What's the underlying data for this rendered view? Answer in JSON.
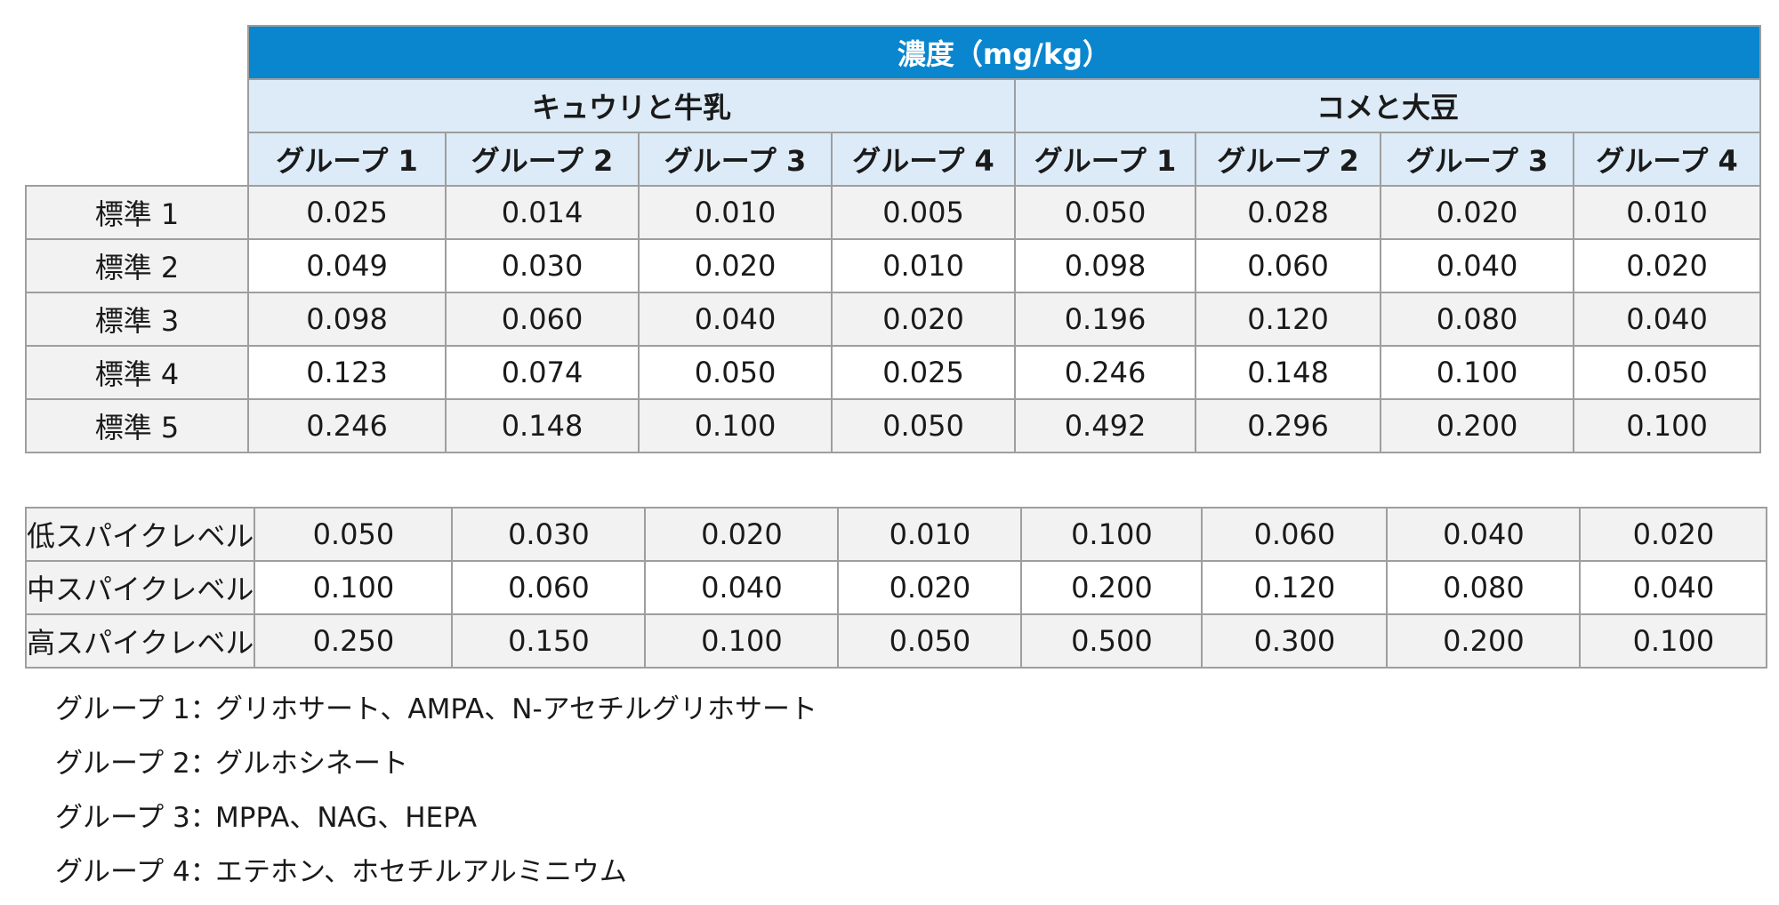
{
  "table": {
    "title": "濃度（mg/kg）",
    "matrices": [
      "キュウリと牛乳",
      "コメと大豆"
    ],
    "group_headers": [
      "グループ 1",
      "グループ 2",
      "グループ 3",
      "グループ 4",
      "グループ 1",
      "グループ 2",
      "グループ 3",
      "グループ 4"
    ],
    "standard_rows": [
      {
        "label": "標準 1",
        "values": [
          "0.025",
          "0.014",
          "0.010",
          "0.005",
          "0.050",
          "0.028",
          "0.020",
          "0.010"
        ]
      },
      {
        "label": "標準 2",
        "values": [
          "0.049",
          "0.030",
          "0.020",
          "0.010",
          "0.098",
          "0.060",
          "0.040",
          "0.020"
        ]
      },
      {
        "label": "標準 3",
        "values": [
          "0.098",
          "0.060",
          "0.040",
          "0.020",
          "0.196",
          "0.120",
          "0.080",
          "0.040"
        ]
      },
      {
        "label": "標準 4",
        "values": [
          "0.123",
          "0.074",
          "0.050",
          "0.025",
          "0.246",
          "0.148",
          "0.100",
          "0.050"
        ]
      },
      {
        "label": "標準 5",
        "values": [
          "0.246",
          "0.148",
          "0.100",
          "0.050",
          "0.492",
          "0.296",
          "0.200",
          "0.100"
        ]
      }
    ],
    "spike_rows": [
      {
        "label": "低スパイクレベル",
        "values": [
          "0.050",
          "0.030",
          "0.020",
          "0.010",
          "0.100",
          "0.060",
          "0.040",
          "0.020"
        ]
      },
      {
        "label": "中スパイクレベル",
        "values": [
          "0.100",
          "0.060",
          "0.040",
          "0.020",
          "0.200",
          "0.120",
          "0.080",
          "0.040"
        ]
      },
      {
        "label": "高スパイクレベル",
        "values": [
          "0.250",
          "0.150",
          "0.100",
          "0.050",
          "0.500",
          "0.300",
          "0.200",
          "0.100"
        ]
      }
    ]
  },
  "notes": [
    {
      "key": "グループ 1：",
      "text": "グリホサート、AMPA、N-アセチルグリホサート"
    },
    {
      "key": "グループ 2：",
      "text": "グルホシネート"
    },
    {
      "key": "グループ 3：",
      "text": "MPPA、NAG、HEPA"
    },
    {
      "key": "グループ 4：",
      "text": "エテホン、ホセチルアルミニウム"
    }
  ]
}
